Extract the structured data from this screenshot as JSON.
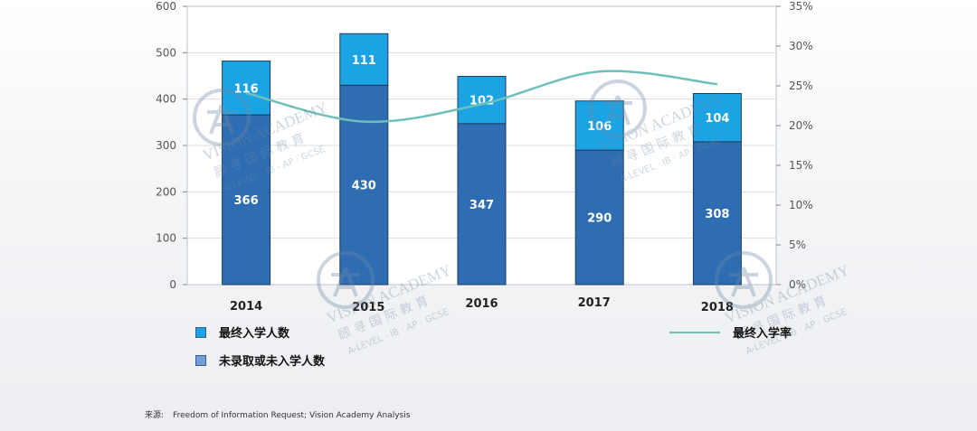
{
  "title_fragment": "",
  "chart_data": {
    "type": "bar",
    "stacked": true,
    "categories": [
      "2014",
      "2015",
      "2016",
      "2017",
      "2018"
    ],
    "series": [
      {
        "name": "未录取或未入学人数",
        "values": [
          366,
          430,
          347,
          290,
          308
        ],
        "color": "#2f6db3"
      },
      {
        "name": "最终入学人数",
        "values": [
          116,
          111,
          102,
          106,
          104
        ],
        "color": "#1ba3e4"
      }
    ],
    "line_series": {
      "name": "最终入学率",
      "axis": "right",
      "values": [
        24.1,
        20.5,
        22.7,
        26.8,
        25.2
      ],
      "color": "#6fc0bb"
    },
    "ylim": [
      0,
      600
    ],
    "yticks": [
      0,
      100,
      200,
      300,
      400,
      500,
      600
    ],
    "y2lim": [
      0,
      35
    ],
    "y2ticks": [
      "0%",
      "5%",
      "10%",
      "15%",
      "20%",
      "25%",
      "30%",
      "35%"
    ],
    "grid": true,
    "legend_position": "bottom"
  },
  "legend": {
    "enrolled": "最终入学人数",
    "not_enrolled": "未录取或未入学人数",
    "rate": "最终入学率"
  },
  "source": {
    "label": "来源:",
    "text": "Freedom of Information Request; Vision Academy Analysis"
  },
  "watermark": {
    "line1": "VISION ACADEMY",
    "line2": "顾 寻 国 际 教 育",
    "line3": "A-LEVEL · IB · AP · GCSE"
  }
}
